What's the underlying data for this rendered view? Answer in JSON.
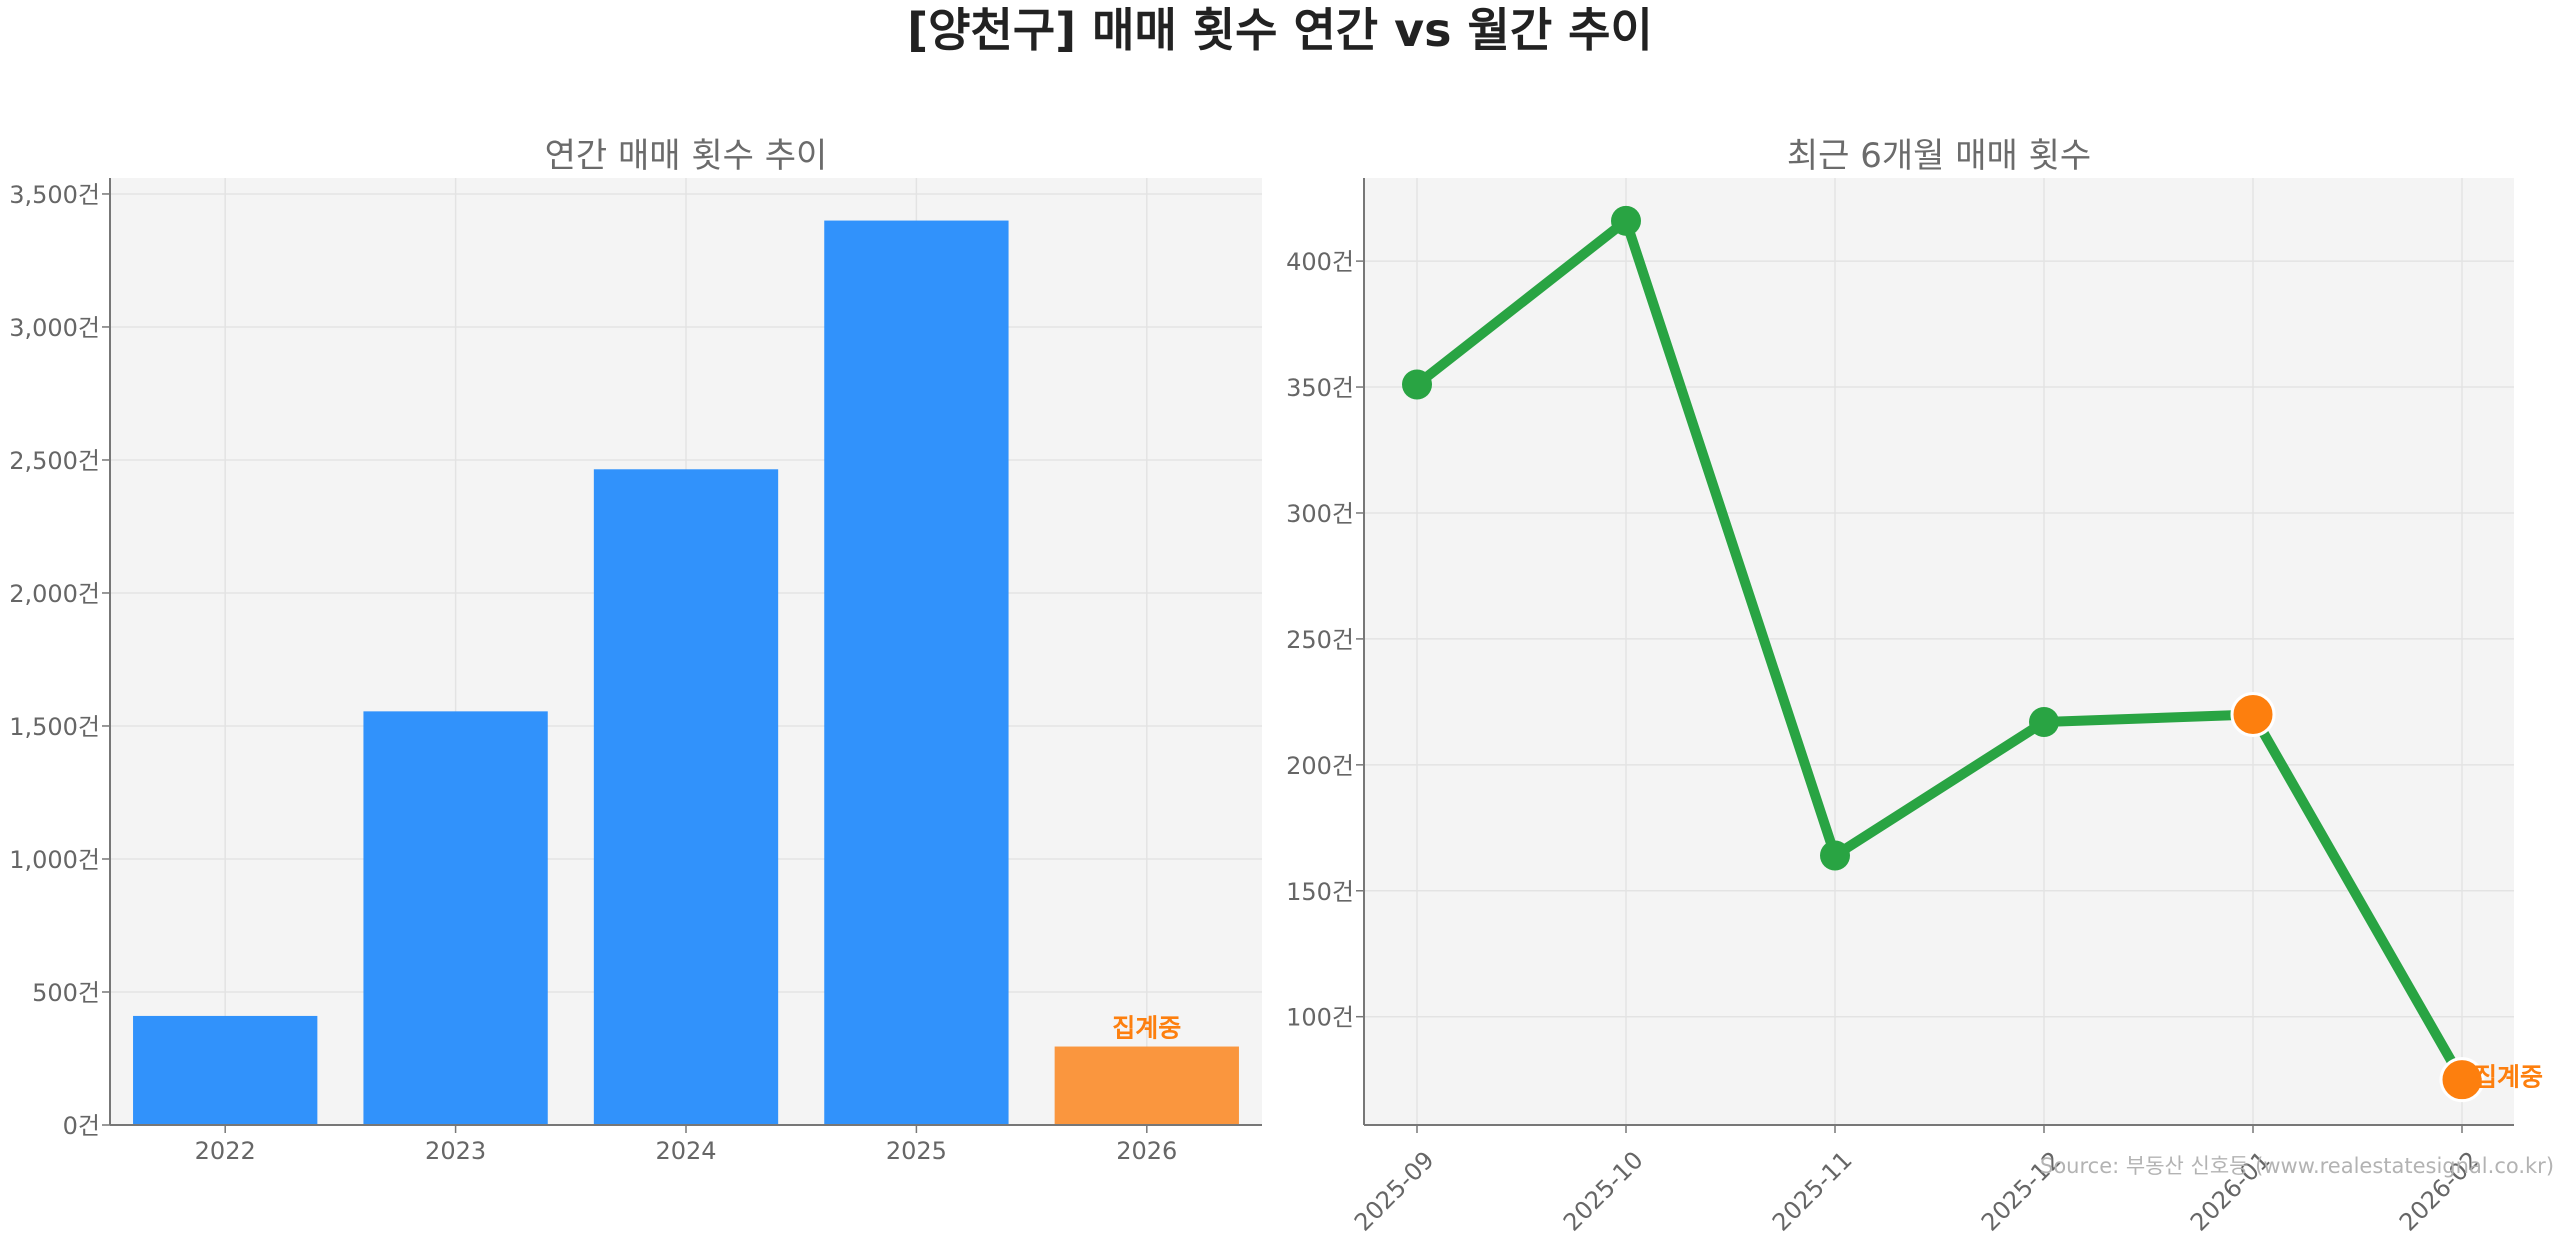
{
  "title": "[양천구] 매매 횟수 연간 vs 월간 추이",
  "source": "Source: 부동산 신호등 (www.realestatesignal.co.kr)",
  "colors": {
    "bar": "#3192fb",
    "bar_partial": "#fa963e",
    "line": "#29a443",
    "highlight": "#fd7f0e",
    "note": "#fd7f0e"
  },
  "chart_data": [
    {
      "type": "bar",
      "title": "연간 매매 횟수 추이",
      "categories": [
        "2022",
        "2023",
        "2024",
        "2025",
        "2026"
      ],
      "values": [
        410,
        1555,
        2465,
        3400,
        295
      ],
      "highlight_index": 4,
      "annotation": "집계중",
      "ylim": [
        0,
        3560
      ],
      "yticks": [
        0,
        500,
        1000,
        1500,
        2000,
        2500,
        3000,
        3500
      ],
      "ytick_labels": [
        "0건",
        "500건",
        "1,000건",
        "1,500건",
        "2,000건",
        "2,500건",
        "3,000건",
        "3,500건"
      ],
      "grid": true
    },
    {
      "type": "line",
      "title": "최근 6개월 매매 횟수",
      "categories": [
        "2025-09",
        "2025-10",
        "2025-11",
        "2025-12",
        "2026-01",
        "2026-02"
      ],
      "values": [
        351,
        416,
        164,
        217,
        220,
        75
      ],
      "highlight_indices": [
        4,
        5
      ],
      "annotation": "집계중",
      "ylim": [
        57,
        433
      ],
      "yticks": [
        100,
        150,
        200,
        250,
        300,
        350,
        400
      ],
      "ytick_labels": [
        "100건",
        "150건",
        "200건",
        "250건",
        "300건",
        "350건",
        "400건"
      ],
      "grid": true
    }
  ]
}
